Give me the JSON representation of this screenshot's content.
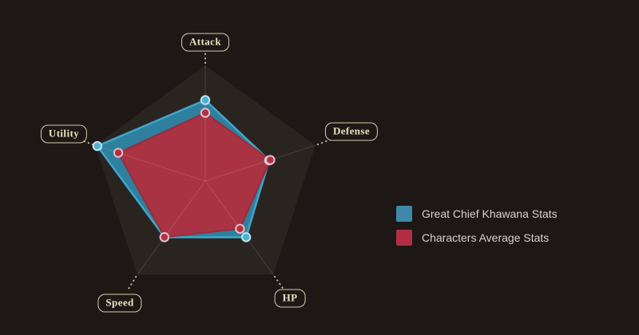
{
  "colors": {
    "background": "#1d1815",
    "grid_fill": "#2a2420",
    "axis_line": "rgba(255,255,255,0.13)",
    "connector": "#d8d0ba",
    "label_text": "#ece2c2",
    "label_border": "#d6cca6",
    "legend_text": "#d5d2ce"
  },
  "chart_data": {
    "type": "radar",
    "title": "",
    "axes": [
      "Attack",
      "Defense",
      "HP",
      "Speed",
      "Utility"
    ],
    "scale": {
      "min": 0,
      "max": 100,
      "gridlines": "single outer pentagon, no inner rings, no tick labels"
    },
    "grid": {
      "shape": "pentagon",
      "levels": 1
    },
    "legend_position": "right",
    "series": [
      {
        "name": "Great Chief Khawana Stats",
        "values": [
          70,
          58,
          60,
          60,
          98
        ],
        "fill": "#2f7f9e",
        "stroke": "#3fa5c8",
        "marker_fill": "#4db0d4",
        "marker_stroke": "#bfe3f0"
      },
      {
        "name": "Characters Average Stats",
        "values": [
          59,
          59,
          51,
          60,
          79
        ],
        "fill": "#a93343",
        "stroke": "#962d40",
        "marker_fill": "#b03044",
        "marker_stroke": "#e9bcc3"
      }
    ]
  },
  "legend": {
    "items": [
      {
        "label": "Great Chief Khawana Stats",
        "color": "#3e88a9"
      },
      {
        "label": "Characters Average Stats",
        "color": "#b12e44"
      }
    ]
  }
}
